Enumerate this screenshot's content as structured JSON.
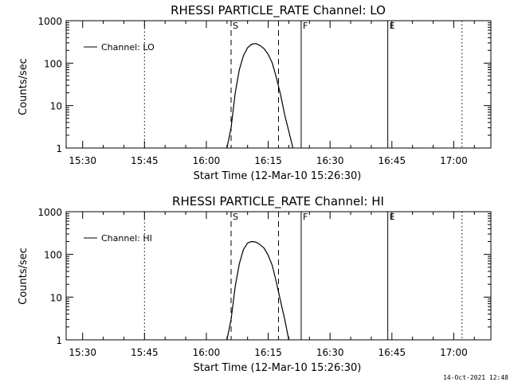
{
  "footer": {
    "timestamp": "14-Oct-2021 12:48"
  },
  "chart_data": [
    {
      "type": "line",
      "title": "RHESSI PARTICLE_RATE Channel: LO",
      "xlabel": "Start Time (12-Mar-10 15:26:30)",
      "ylabel": "Counts/sec",
      "y_scale": "log",
      "ylim": [
        1,
        1000
      ],
      "yticks": [
        "1",
        "10",
        "100",
        "1000"
      ],
      "xlim": [
        "15:26",
        "17:09"
      ],
      "xticks": [
        "15:30",
        "15:45",
        "16:00",
        "16:15",
        "16:30",
        "16:45",
        "17:00"
      ],
      "legend": {
        "position": "top-left",
        "entries": [
          "Channel: LO"
        ]
      },
      "markers": [
        {
          "label": "S",
          "style": "dashed",
          "x": "16:06"
        },
        {
          "label": "",
          "style": "dashed",
          "x": "16:17.5"
        },
        {
          "label": "F",
          "style": "solid",
          "x": "16:23"
        },
        {
          "label": "E",
          "style": "solid",
          "x": "16:44"
        },
        {
          "label": "",
          "style": "dotted",
          "x": "15:45"
        },
        {
          "label": "",
          "style": "dotted",
          "x": "17:02"
        }
      ],
      "series": [
        {
          "name": "Channel: LO",
          "x": [
            "16:05",
            "16:06",
            "16:07",
            "16:08",
            "16:09",
            "16:10",
            "16:11",
            "16:12",
            "16:13",
            "16:14",
            "16:15",
            "16:16",
            "16:17",
            "16:18",
            "16:19",
            "16:20",
            "16:21"
          ],
          "y": [
            1,
            3,
            20,
            70,
            150,
            230,
            280,
            290,
            260,
            220,
            160,
            100,
            45,
            18,
            6,
            2.5,
            1
          ]
        }
      ]
    },
    {
      "type": "line",
      "title": "RHESSI PARTICLE_RATE Channel: HI",
      "xlabel": "Start Time (12-Mar-10 15:26:30)",
      "ylabel": "Counts/sec",
      "y_scale": "log",
      "ylim": [
        1,
        1000
      ],
      "yticks": [
        "1",
        "10",
        "100",
        "1000"
      ],
      "xlim": [
        "15:26",
        "17:09"
      ],
      "xticks": [
        "15:30",
        "15:45",
        "16:00",
        "16:15",
        "16:30",
        "16:45",
        "17:00"
      ],
      "legend": {
        "position": "top-left",
        "entries": [
          "Channel: HI"
        ]
      },
      "markers": [
        {
          "label": "S",
          "style": "dashed",
          "x": "16:06"
        },
        {
          "label": "",
          "style": "dashed",
          "x": "16:17.5"
        },
        {
          "label": "F",
          "style": "solid",
          "x": "16:23"
        },
        {
          "label": "E",
          "style": "solid",
          "x": "16:44"
        },
        {
          "label": "",
          "style": "dotted",
          "x": "15:45"
        },
        {
          "label": "",
          "style": "dotted",
          "x": "17:02"
        }
      ],
      "series": [
        {
          "name": "Channel: HI",
          "x": [
            "16:05",
            "16:06",
            "16:07",
            "16:08",
            "16:09",
            "16:10",
            "16:11",
            "16:12",
            "16:13",
            "16:14",
            "16:15",
            "16:16",
            "16:17",
            "16:18",
            "16:19",
            "16:20"
          ],
          "y": [
            1,
            3,
            18,
            60,
            130,
            185,
            200,
            195,
            170,
            140,
            95,
            55,
            22,
            8,
            3,
            1
          ]
        }
      ]
    }
  ]
}
